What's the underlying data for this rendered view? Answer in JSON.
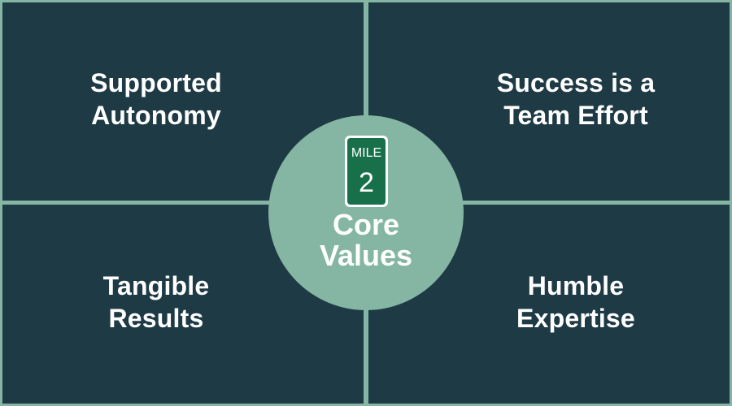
{
  "quadrants": {
    "top_left": "Supported\nAutonomy",
    "top_right": "Success is a\nTeam Effort",
    "bottom_left": "Tangible\nResults",
    "bottom_right": "Humble\nExpertise"
  },
  "center": {
    "sign_word": "MILE",
    "sign_number": "2",
    "title": "Core\nValues"
  },
  "colors": {
    "panel": "#1e3a45",
    "accent": "#84b6a3",
    "sign_green": "#17704a",
    "text": "#ffffff"
  }
}
